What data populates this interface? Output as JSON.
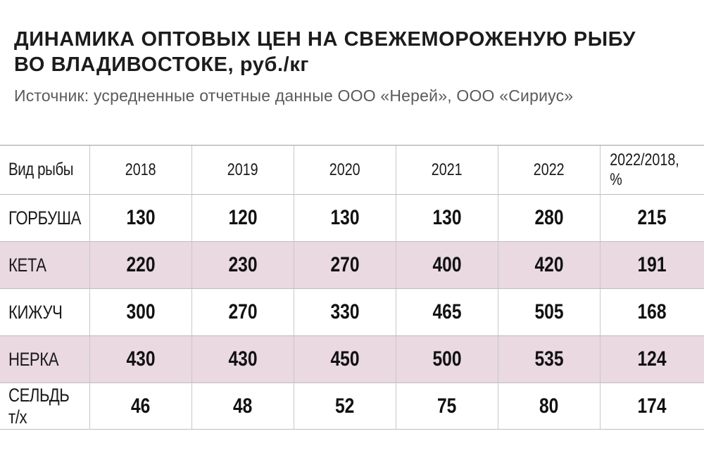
{
  "title": {
    "line1": "ДИНАМИКА ОПТОВЫХ ЦЕН НА СВЕЖЕМОРОЖЕНУЮ РЫБУ",
    "line2": "ВО ВЛАДИВОСТОКЕ, руб./кг"
  },
  "source": "Источник: усредненные отчетные данные ООО «Нерей», ООО «Сириус»",
  "chart_data": {
    "type": "table",
    "title": "ДИНАМИКА ОПТОВЫХ ЦЕН НА СВЕЖЕМОРОЖЕНУЮ РЫБУ ВО ВЛАДИВОСТОКЕ, руб./кг",
    "columns": [
      "Вид рыбы",
      "2018",
      "2019",
      "2020",
      "2021",
      "2022",
      "2022/2018, %"
    ],
    "rows": [
      {
        "name": "ГОРБУША",
        "values": [
          130,
          120,
          130,
          130,
          280,
          215
        ]
      },
      {
        "name": "КЕТА",
        "values": [
          220,
          230,
          270,
          400,
          420,
          191
        ]
      },
      {
        "name": "КИЖУЧ",
        "values": [
          300,
          270,
          330,
          465,
          505,
          168
        ]
      },
      {
        "name": "НЕРКА",
        "values": [
          430,
          430,
          450,
          500,
          535,
          124
        ]
      },
      {
        "name": "СЕЛЬДЬ т/х",
        "values": [
          46,
          48,
          52,
          75,
          80,
          174
        ]
      }
    ],
    "shaded_row_color": "#ead9e1"
  }
}
